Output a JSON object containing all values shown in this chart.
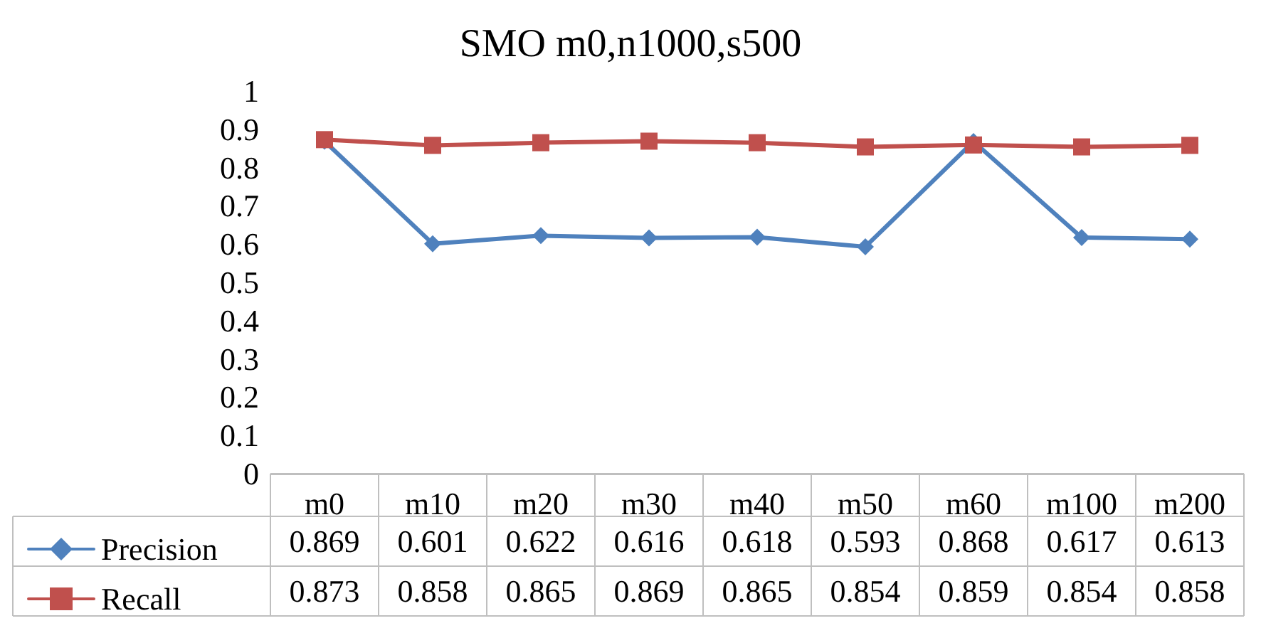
{
  "chart_data": {
    "type": "line",
    "title": "SMO m0,n1000,s500",
    "categories": [
      "m0",
      "m10",
      "m20",
      "m30",
      "m40",
      "m50",
      "m60",
      "m100",
      "m200"
    ],
    "series": [
      {
        "name": "Precision",
        "color": "#4f81bd",
        "marker": "diamond",
        "values": [
          0.869,
          0.601,
          0.622,
          0.616,
          0.618,
          0.593,
          0.868,
          0.617,
          0.613
        ]
      },
      {
        "name": "Recall",
        "color": "#c0504d",
        "marker": "square",
        "values": [
          0.873,
          0.858,
          0.865,
          0.869,
          0.865,
          0.854,
          0.859,
          0.854,
          0.858
        ]
      }
    ],
    "ylim": [
      0,
      1
    ],
    "yticks": [
      0,
      0.1,
      0.2,
      0.3,
      0.4,
      0.5,
      0.6,
      0.7,
      0.8,
      0.9,
      1
    ],
    "grid": false,
    "legend": "bottom left",
    "data_labels": true
  }
}
